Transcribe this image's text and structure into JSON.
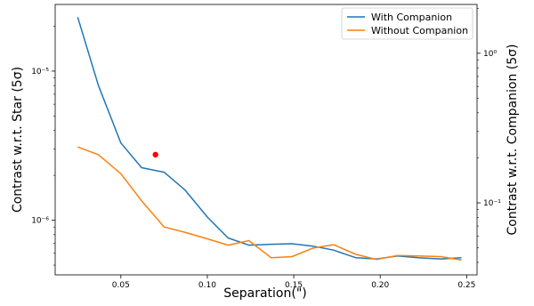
{
  "chart_data": {
    "type": "line",
    "xlabel": "Separation(\")",
    "ylabel_left": "Contrast w.r.t. Star (5σ)",
    "ylabel_right": "Contrast w.r.t. Companion (5σ)",
    "xlim": [
      0.012,
      0.256
    ],
    "x_ticks": [
      0.05,
      0.1,
      0.15,
      0.2,
      0.25
    ],
    "x_tick_labels": [
      "0.05",
      "0.10",
      "0.15",
      "0.20",
      "0.25"
    ],
    "ylim_left": [
      4.3e-07,
      2.8e-05
    ],
    "y_scale_left": "log",
    "y_ticks_left": [
      1e-06,
      1e-05
    ],
    "y_tick_labels_left": [
      "10⁻⁶",
      "10⁻⁵"
    ],
    "ylim_right": [
      0.033,
      2.12
    ],
    "y_scale_right": "log",
    "y_ticks_right": [
      0.1,
      1
    ],
    "y_tick_labels_right": [
      "10⁻¹",
      "10⁰"
    ],
    "grid": false,
    "legend_position": "top-right",
    "series": [
      {
        "name": "With Companion",
        "color": "#1f77b4",
        "axis": "left",
        "x": [
          0.025,
          0.037,
          0.05,
          0.062,
          0.075,
          0.087,
          0.1,
          0.112,
          0.124,
          0.137,
          0.149,
          0.161,
          0.173,
          0.186,
          0.198,
          0.21,
          0.222,
          0.235,
          0.247
        ],
        "y": [
          2.3e-05,
          8e-06,
          3.3e-06,
          2.25e-06,
          2.1e-06,
          1.6e-06,
          1.05e-06,
          7.6e-07,
          6.8e-07,
          6.9e-07,
          6.95e-07,
          6.7e-07,
          6.3e-07,
          5.6e-07,
          5.5e-07,
          5.75e-07,
          5.6e-07,
          5.5e-07,
          5.6e-07
        ]
      },
      {
        "name": "Without Companion",
        "color": "#ff7f0e",
        "axis": "left",
        "x": [
          0.025,
          0.037,
          0.05,
          0.062,
          0.075,
          0.087,
          0.1,
          0.112,
          0.124,
          0.137,
          0.149,
          0.161,
          0.173,
          0.186,
          0.198,
          0.21,
          0.222,
          0.235,
          0.247
        ],
        "y": [
          3.1e-06,
          2.75e-06,
          2.05e-06,
          1.35e-06,
          9e-07,
          8.3e-07,
          7.5e-07,
          6.8e-07,
          7.3e-07,
          5.6e-07,
          5.7e-07,
          6.5e-07,
          6.85e-07,
          5.9e-07,
          5.45e-07,
          5.8e-07,
          5.75e-07,
          5.7e-07,
          5.4e-07
        ]
      }
    ],
    "markers": [
      {
        "axis": "right",
        "x": 0.07,
        "y": 0.21,
        "color": "#ff0000"
      }
    ]
  }
}
